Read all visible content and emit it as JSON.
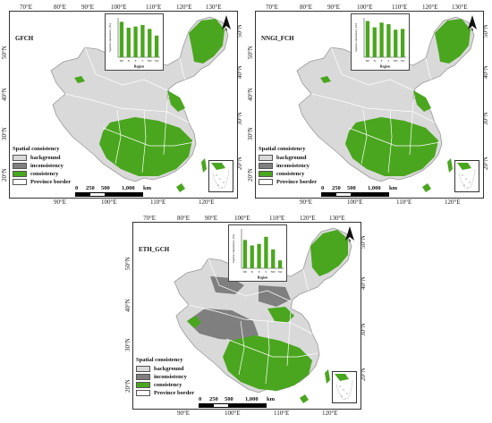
{
  "panels": [
    {
      "title": "GFCH",
      "top_lon": [
        "70°E",
        "80°E",
        "90°E",
        "100°E",
        "110°E",
        "120°E",
        "130°E"
      ],
      "bottom_lon": [
        "90°E",
        "100°E",
        "110°E",
        "120°E"
      ],
      "left_lat": [
        "50°N",
        "40°N",
        "30°N",
        "20°N"
      ],
      "right_lat": [
        "50°N",
        "40°N",
        "30°N",
        "20°N"
      ],
      "chart_data": {
        "type": "bar",
        "categories": [
          "NE",
          "N",
          "E",
          "S",
          "NW",
          "SW"
        ],
        "values": [
          90,
          75,
          78,
          82,
          72,
          55
        ],
        "ylabel": "Spatial consistency (%)",
        "xlabel": "Region"
      },
      "extent": "low"
    },
    {
      "title": "NNGI_FCH",
      "top_lon": [
        "70°E",
        "80°E",
        "90°E",
        "100°E",
        "110°E",
        "120°E",
        "130°E"
      ],
      "bottom_lon": [
        "90°E",
        "100°E",
        "110°E",
        "120°E"
      ],
      "left_lat": [
        "50°N",
        "40°N",
        "30°N",
        "20°N"
      ],
      "right_lat": [
        "50°N",
        "40°N",
        "30°N",
        "20°N"
      ],
      "chart_data": {
        "type": "bar",
        "categories": [
          "NE",
          "N",
          "E",
          "S",
          "NW",
          "SW"
        ],
        "values": [
          92,
          76,
          88,
          84,
          70,
          72
        ],
        "ylabel": "Spatial consistency (%)",
        "xlabel": "Region"
      },
      "extent": "low"
    },
    {
      "title": "ETH_GCH",
      "top_lon": [
        "70°E",
        "80°E",
        "90°E",
        "100°E",
        "110°E",
        "120°E",
        "130°E"
      ],
      "bottom_lon": [
        "90°E",
        "100°E",
        "110°E",
        "120°E"
      ],
      "left_lat": [
        "50°N",
        "40°N",
        "30°N",
        "20°N"
      ],
      "right_lat": [
        "50°N",
        "40°N",
        "30°N",
        "20°N"
      ],
      "chart_data": {
        "type": "bar",
        "categories": [
          "NE",
          "N",
          "E",
          "S",
          "NW",
          "SW"
        ],
        "values": [
          72,
          58,
          62,
          80,
          48,
          20
        ],
        "ylabel": "Spatial consistency (%)",
        "xlabel": "Region"
      },
      "extent": "high"
    }
  ],
  "legend": {
    "title": "Spatial consistency",
    "items": [
      {
        "label": "background",
        "color": "#d9d9d9"
      },
      {
        "label": "inconsistency",
        "color": "#7f7f7f"
      },
      {
        "label": "consistency",
        "color": "#4aa61e"
      },
      {
        "label": "Province border",
        "color": "#ffffff"
      }
    ]
  },
  "scalebar": {
    "ticks": [
      "0",
      "250",
      "500",
      "1,000"
    ],
    "unit": "km"
  },
  "north_label": "N",
  "colors": {
    "background": "#d9d9d9",
    "inconsistency": "#7f7f7f",
    "consistency": "#4aa61e",
    "border": "#ffffff"
  }
}
